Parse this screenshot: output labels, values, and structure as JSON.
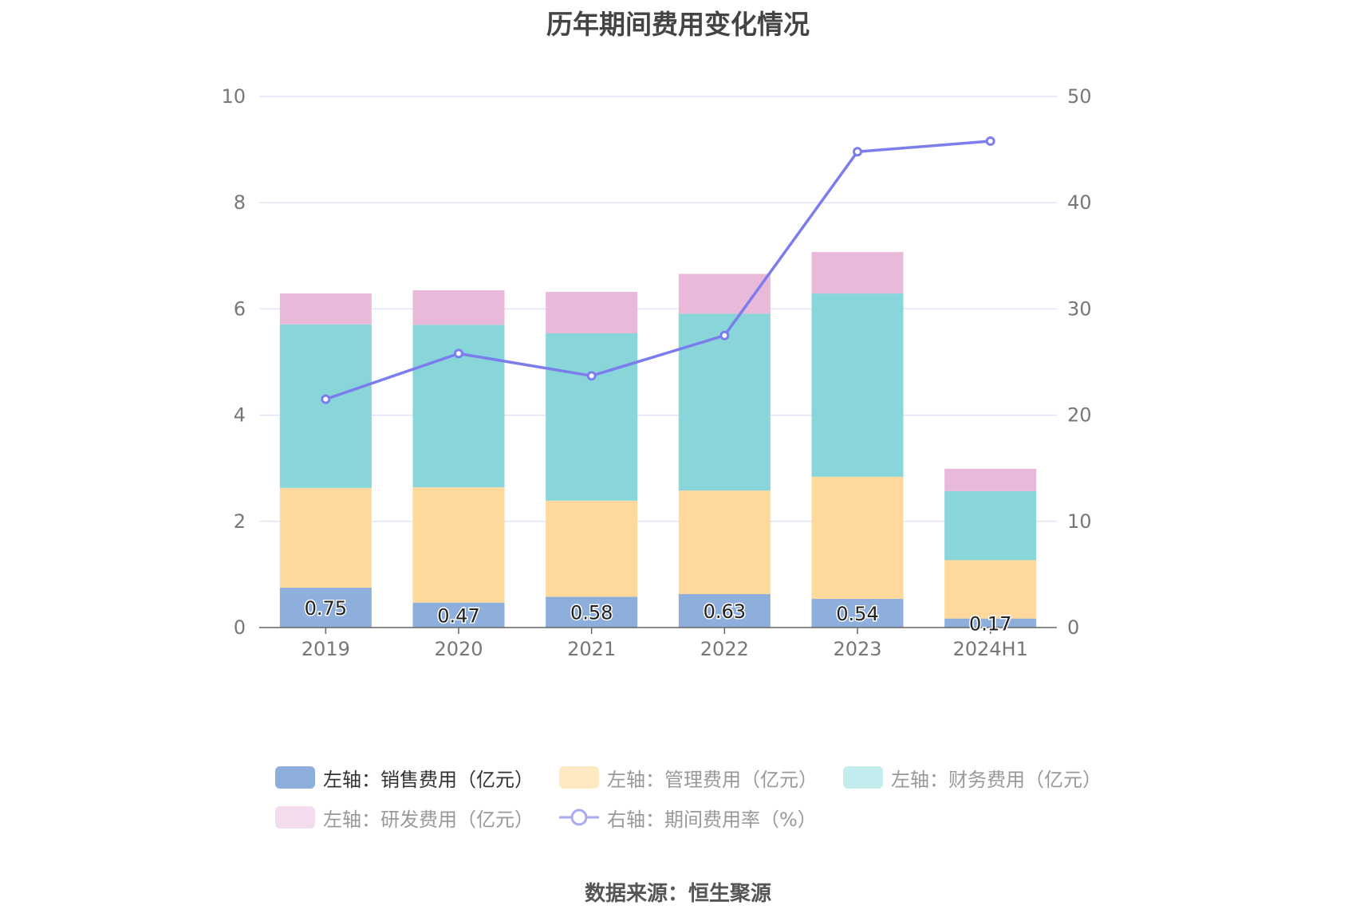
{
  "title": "历年期间费用变化情况",
  "source": "数据来源：恒生聚源",
  "chart_data": {
    "type": "bar",
    "stacked": true,
    "categories": [
      "2019",
      "2020",
      "2021",
      "2022",
      "2023",
      "2024H1"
    ],
    "left_axis": {
      "min": 0,
      "max": 10,
      "ticks": [
        "0",
        "2",
        "4",
        "6",
        "8",
        "10"
      ]
    },
    "right_axis": {
      "min": 0,
      "max": 50,
      "ticks": [
        "0",
        "10",
        "20",
        "30",
        "40",
        "50"
      ]
    },
    "grid": true,
    "legend_position": "bottom",
    "series": [
      {
        "name": "左轴：销售费用（亿元）",
        "axis": "left",
        "type": "bar",
        "color": "#8eaedc",
        "values": [
          0.75,
          0.47,
          0.58,
          0.63,
          0.54,
          0.17
        ],
        "labels": [
          "0.75",
          "0.47",
          "0.58",
          "0.63",
          "0.54",
          "0.17"
        ]
      },
      {
        "name": "左轴：管理费用（亿元）",
        "axis": "left",
        "type": "bar",
        "color": "#ffd99b",
        "values": [
          1.88,
          2.17,
          1.81,
          1.95,
          2.3,
          1.1
        ]
      },
      {
        "name": "左轴：财务费用（亿元）",
        "axis": "left",
        "type": "bar",
        "color": "#88d6d9",
        "values": [
          3.08,
          3.06,
          3.15,
          3.33,
          3.45,
          1.3
        ]
      },
      {
        "name": "左轴：研发费用（亿元）",
        "axis": "left",
        "type": "bar",
        "color": "#e8b9d9",
        "values": [
          0.58,
          0.65,
          0.78,
          0.75,
          0.78,
          0.42
        ]
      },
      {
        "name": "右轴：期间费用率（%）",
        "axis": "right",
        "type": "line",
        "color": "#7b7ded",
        "values": [
          21.5,
          25.8,
          23.7,
          27.5,
          44.8,
          45.8
        ]
      }
    ]
  },
  "legend_colors": [
    "#8eaedc",
    "#ffe9c3",
    "#c2ecee",
    "#f2dced",
    "#aaaaf0"
  ],
  "legend_text_colors": [
    "#333333",
    "#999999",
    "#999999",
    "#999999",
    "#999999"
  ]
}
